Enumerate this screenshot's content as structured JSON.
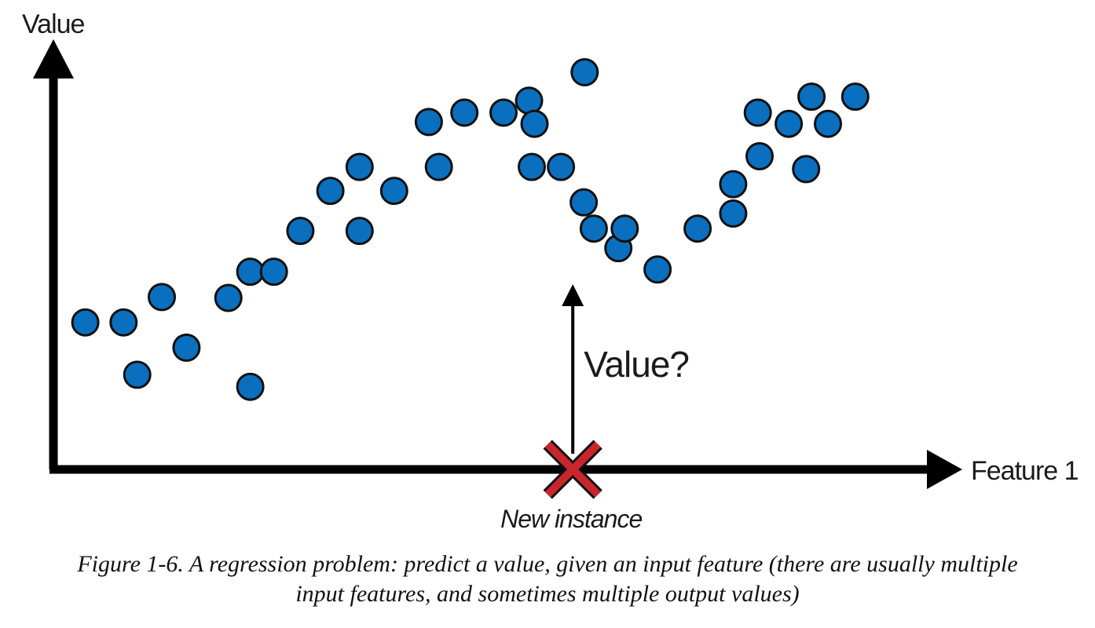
{
  "chart_data": {
    "type": "scatter",
    "xlabel": "Feature 1",
    "ylabel": "Value",
    "xlim": [
      0,
      100
    ],
    "ylim": [
      0,
      100
    ],
    "grid": false,
    "point_color": "#0a6fbe",
    "points": [
      {
        "x": 3.5,
        "y": 33.1
      },
      {
        "x": 7.7,
        "y": 33.1
      },
      {
        "x": 9.2,
        "y": 21.3
      },
      {
        "x": 11.9,
        "y": 38.8
      },
      {
        "x": 14.6,
        "y": 27.4
      },
      {
        "x": 19.2,
        "y": 38.6
      },
      {
        "x": 21.6,
        "y": 18.6
      },
      {
        "x": 21.6,
        "y": 44.5
      },
      {
        "x": 24.2,
        "y": 44.5
      },
      {
        "x": 27.1,
        "y": 53.7
      },
      {
        "x": 30.4,
        "y": 62.7
      },
      {
        "x": 33.6,
        "y": 68.1
      },
      {
        "x": 33.6,
        "y": 53.7
      },
      {
        "x": 37.4,
        "y": 62.7
      },
      {
        "x": 41.2,
        "y": 78.2
      },
      {
        "x": 42.3,
        "y": 68.1
      },
      {
        "x": 45.1,
        "y": 80.3
      },
      {
        "x": 49.4,
        "y": 80.3
      },
      {
        "x": 52.2,
        "y": 83.0
      },
      {
        "x": 52.8,
        "y": 77.8
      },
      {
        "x": 52.5,
        "y": 68.1
      },
      {
        "x": 55.7,
        "y": 68.1
      },
      {
        "x": 58.3,
        "y": 89.4
      },
      {
        "x": 58.2,
        "y": 60.1
      },
      {
        "x": 59.3,
        "y": 54.2
      },
      {
        "x": 62.0,
        "y": 49.8
      },
      {
        "x": 62.7,
        "y": 54.2
      },
      {
        "x": 66.3,
        "y": 45.0
      },
      {
        "x": 70.7,
        "y": 54.2
      },
      {
        "x": 74.6,
        "y": 57.6
      },
      {
        "x": 74.6,
        "y": 64.2
      },
      {
        "x": 77.5,
        "y": 70.5
      },
      {
        "x": 77.3,
        "y": 80.3
      },
      {
        "x": 80.7,
        "y": 77.8
      },
      {
        "x": 82.6,
        "y": 67.6
      },
      {
        "x": 83.2,
        "y": 83.9
      },
      {
        "x": 85.0,
        "y": 77.8
      },
      {
        "x": 88.0,
        "y": 83.9
      }
    ],
    "new_instance": {
      "x": 57.0,
      "label": "New instance",
      "query_label": "Value?"
    }
  },
  "caption": {
    "line1": "Figure 1-6. A regression problem: predict a value, given an input feature (there are usually multiple",
    "line2": "input features, and sometimes multiple output values)"
  }
}
